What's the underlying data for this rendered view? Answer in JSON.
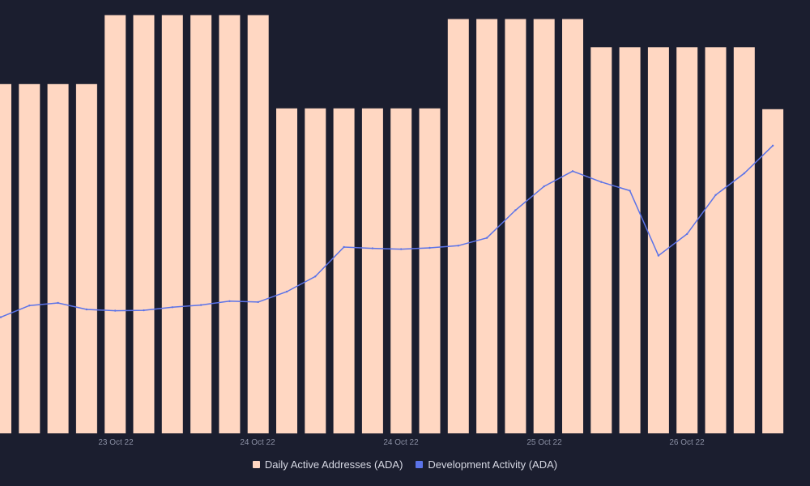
{
  "chart_data": {
    "type": "bar",
    "title": "",
    "xlabel": "",
    "ylabel": "",
    "grid": false,
    "legend_position": "bottom-center",
    "x_tick_labels": [
      "23 Oct 22",
      "24 Oct 22",
      "24 Oct 22",
      "25 Oct 22",
      "26 Oct 22"
    ],
    "bar_series": {
      "name": "Daily Active Addresses (ADA)",
      "color": "#ffd7c2",
      "ylim": [
        0,
        100
      ],
      "values": [
        80.6,
        80.6,
        80.6,
        80.6,
        96.5,
        96.5,
        96.5,
        96.5,
        96.5,
        96.5,
        75.0,
        75.0,
        75.0,
        75.0,
        75.0,
        75.0,
        95.6,
        95.6,
        95.6,
        95.6,
        95.6,
        89.1,
        89.1,
        89.1,
        89.1,
        89.1,
        89.1,
        74.8
      ]
    },
    "line_series": {
      "name": "Development Activity (ADA)",
      "color": "#5b73e8",
      "ylim": [
        0,
        100
      ],
      "values": [
        26.8,
        29.5,
        30.1,
        28.6,
        28.3,
        28.4,
        29.1,
        29.6,
        30.5,
        30.3,
        32.7,
        36.2,
        43.0,
        42.7,
        42.5,
        42.8,
        43.3,
        45.1,
        51.5,
        57.0,
        60.5,
        58.0,
        56.0,
        41.0,
        46.0,
        55.0,
        60.0,
        66.4
      ]
    }
  }
}
